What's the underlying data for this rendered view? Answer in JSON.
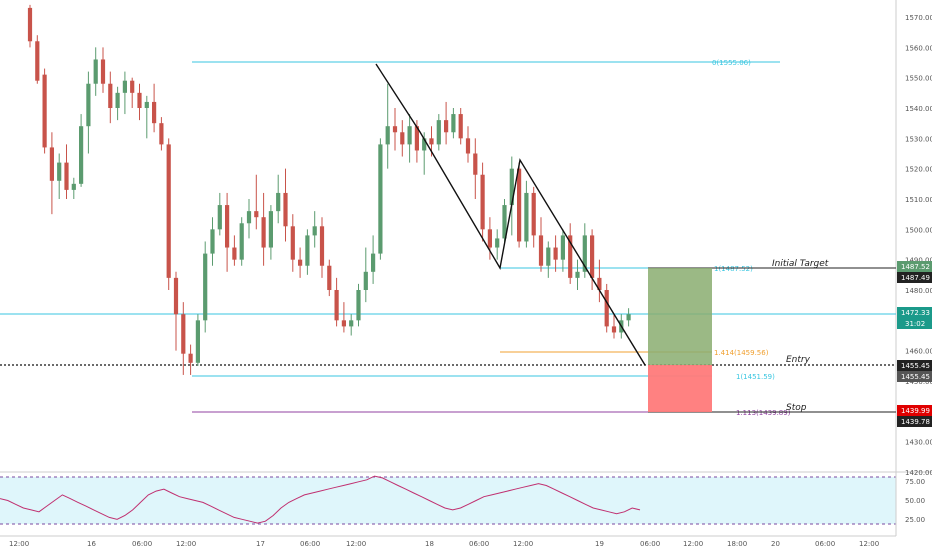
{
  "chart": {
    "price_axis": {
      "labels": [
        "1570.00",
        "1560.00",
        "1550.00",
        "1540.00",
        "1530.00",
        "1520.00",
        "1510.00",
        "1500.00",
        "1490.00",
        "1480.00",
        "1470.00",
        "1460.00",
        "1450.00",
        "1440.00",
        "1430.00",
        "1420.00"
      ],
      "min": 1420,
      "max": 1575
    },
    "time_axis": {
      "labels": [
        "12:00",
        "16",
        "06:00",
        "12:00",
        "17",
        "06:00",
        "12:00",
        "18",
        "06:00",
        "12:00",
        "19",
        "06:00",
        "12:00",
        "18:00",
        "20",
        "06:00",
        "12:00"
      ]
    },
    "fib_levels": {
      "zero": "0(1555.06)",
      "one_top": "1(1487.52)",
      "one_four": "1.414(1459.56)",
      "one_bottom": "1(1451.59)",
      "one_one": "1.113(1439.89)"
    },
    "annotations": {
      "target": "Initial Target",
      "entry": "Entry",
      "stop": "Stop"
    },
    "price_badges": {
      "target_top": "1487.52",
      "target_bottom": "1487.49",
      "current": "1472.33",
      "countdown": "31:02",
      "entry_top": "1455.45",
      "entry_bottom": "1455.45",
      "stop_top": "1439.99",
      "stop_bottom": "1439.78"
    },
    "colors": {
      "bull": "#5b9b6f",
      "bear": "#c8534a",
      "fib_cyan": "#39c6e0",
      "fib_orange": "#f0a030",
      "fib_purple": "#9040a0",
      "target_zone": "#8aad70",
      "stop_zone": "#ff7a7a"
    },
    "candles": [
      [
        1573,
        1574,
        1560,
        1562
      ],
      [
        1562,
        1564,
        1548,
        1549
      ],
      [
        1551,
        1553,
        1525,
        1527
      ],
      [
        1527,
        1532,
        1505,
        1516
      ],
      [
        1516,
        1525,
        1510,
        1522
      ],
      [
        1522,
        1528,
        1510,
        1513
      ],
      [
        1513,
        1517,
        1510,
        1515
      ],
      [
        1515,
        1538,
        1514,
        1534
      ],
      [
        1534,
        1552,
        1525,
        1548
      ],
      [
        1548,
        1560,
        1544,
        1556
      ],
      [
        1556,
        1560,
        1545,
        1548
      ],
      [
        1548,
        1552,
        1535,
        1540
      ],
      [
        1540,
        1547,
        1536,
        1545
      ],
      [
        1545,
        1552,
        1538,
        1549
      ],
      [
        1549,
        1550,
        1540,
        1545
      ],
      [
        1545,
        1548,
        1536,
        1540
      ],
      [
        1540,
        1544,
        1530,
        1542
      ],
      [
        1542,
        1548,
        1532,
        1535
      ],
      [
        1535,
        1537,
        1526,
        1528
      ],
      [
        1528,
        1530,
        1480,
        1484
      ],
      [
        1484,
        1486,
        1460,
        1472
      ],
      [
        1472,
        1476,
        1452,
        1459
      ],
      [
        1459,
        1462,
        1452,
        1456
      ],
      [
        1456,
        1472,
        1455,
        1470
      ],
      [
        1470,
        1496,
        1466,
        1492
      ],
      [
        1492,
        1504,
        1488,
        1500
      ],
      [
        1500,
        1512,
        1498,
        1508
      ],
      [
        1508,
        1512,
        1486,
        1494
      ],
      [
        1494,
        1498,
        1488,
        1490
      ],
      [
        1490,
        1504,
        1488,
        1502
      ],
      [
        1502,
        1510,
        1497,
        1506
      ],
      [
        1506,
        1518,
        1500,
        1504
      ],
      [
        1504,
        1512,
        1488,
        1494
      ],
      [
        1494,
        1508,
        1490,
        1506
      ],
      [
        1506,
        1518,
        1502,
        1512
      ],
      [
        1512,
        1520,
        1496,
        1501
      ],
      [
        1501,
        1505,
        1486,
        1490
      ],
      [
        1490,
        1494,
        1484,
        1488
      ],
      [
        1488,
        1500,
        1485,
        1498
      ],
      [
        1498,
        1506,
        1494,
        1501
      ],
      [
        1501,
        1504,
        1484,
        1488
      ],
      [
        1488,
        1490,
        1478,
        1480
      ],
      [
        1480,
        1484,
        1468,
        1470
      ],
      [
        1470,
        1476,
        1466,
        1468
      ],
      [
        1468,
        1472,
        1465,
        1470
      ],
      [
        1470,
        1482,
        1468,
        1480
      ],
      [
        1480,
        1494,
        1476,
        1486
      ],
      [
        1486,
        1498,
        1482,
        1492
      ],
      [
        1492,
        1530,
        1490,
        1528
      ],
      [
        1528,
        1548,
        1520,
        1534
      ],
      [
        1534,
        1540,
        1526,
        1532
      ],
      [
        1532,
        1536,
        1524,
        1528
      ],
      [
        1528,
        1538,
        1522,
        1534
      ],
      [
        1534,
        1536,
        1522,
        1526
      ],
      [
        1526,
        1532,
        1518,
        1530
      ],
      [
        1530,
        1534,
        1524,
        1528
      ],
      [
        1528,
        1538,
        1526,
        1536
      ],
      [
        1536,
        1542,
        1528,
        1532
      ],
      [
        1532,
        1540,
        1530,
        1538
      ],
      [
        1538,
        1540,
        1528,
        1530
      ],
      [
        1530,
        1534,
        1522,
        1525
      ],
      [
        1525,
        1530,
        1510,
        1518
      ],
      [
        1518,
        1522,
        1496,
        1500
      ],
      [
        1500,
        1504,
        1490,
        1494
      ],
      [
        1494,
        1500,
        1490,
        1497
      ],
      [
        1497,
        1510,
        1495,
        1508
      ],
      [
        1508,
        1524,
        1498,
        1520
      ],
      [
        1520,
        1522,
        1494,
        1496
      ],
      [
        1496,
        1516,
        1494,
        1512
      ],
      [
        1512,
        1514,
        1494,
        1498
      ],
      [
        1498,
        1504,
        1486,
        1488
      ],
      [
        1488,
        1496,
        1484,
        1494
      ],
      [
        1494,
        1498,
        1486,
        1490
      ],
      [
        1490,
        1500,
        1486,
        1498
      ],
      [
        1498,
        1502,
        1482,
        1484
      ],
      [
        1484,
        1490,
        1480,
        1486
      ],
      [
        1486,
        1502,
        1484,
        1498
      ],
      [
        1498,
        1500,
        1480,
        1484
      ],
      [
        1484,
        1490,
        1476,
        1480
      ],
      [
        1480,
        1482,
        1466,
        1468
      ],
      [
        1468,
        1472,
        1464,
        1466
      ],
      [
        1466,
        1472,
        1464,
        1470
      ],
      [
        1470,
        1474,
        1468,
        1472
      ]
    ],
    "rsi": [
      52,
      50,
      46,
      42,
      40,
      38,
      44,
      50,
      56,
      52,
      48,
      44,
      40,
      36,
      32,
      30,
      34,
      40,
      48,
      56,
      60,
      62,
      58,
      54,
      52,
      50,
      48,
      44,
      40,
      36,
      32,
      30,
      28,
      26,
      28,
      34,
      42,
      48,
      52,
      56,
      58,
      60,
      62,
      64,
      66,
      68,
      70,
      72,
      76,
      74,
      70,
      66,
      62,
      58,
      54,
      50,
      46,
      42,
      40,
      42,
      46,
      50,
      54,
      56,
      58,
      60,
      62,
      64,
      66,
      68,
      66,
      62,
      58,
      54,
      50,
      46,
      42,
      40,
      38,
      36,
      38,
      42,
      40
    ]
  }
}
